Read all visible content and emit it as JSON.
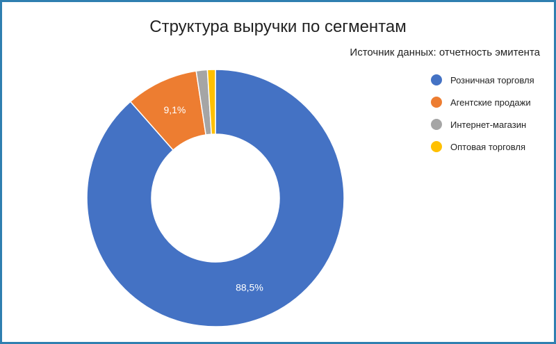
{
  "chart_data": {
    "type": "pie",
    "donut": true,
    "title": "Структура выручки по сегментам",
    "subtitle": "Источник данных: отчетность эмитента",
    "legend_position": "right",
    "categories": [
      "Розничная торговля",
      "Агентские продажи",
      "Интернет-магазин",
      "Оптовая торговля"
    ],
    "values": [
      88.5,
      9.1,
      1.4,
      1.0
    ],
    "colors": [
      "#4472c4",
      "#ed7d31",
      "#a5a5a5",
      "#ffc000"
    ],
    "data_labels": [
      "88,5%",
      "9,1%",
      "",
      ""
    ]
  }
}
